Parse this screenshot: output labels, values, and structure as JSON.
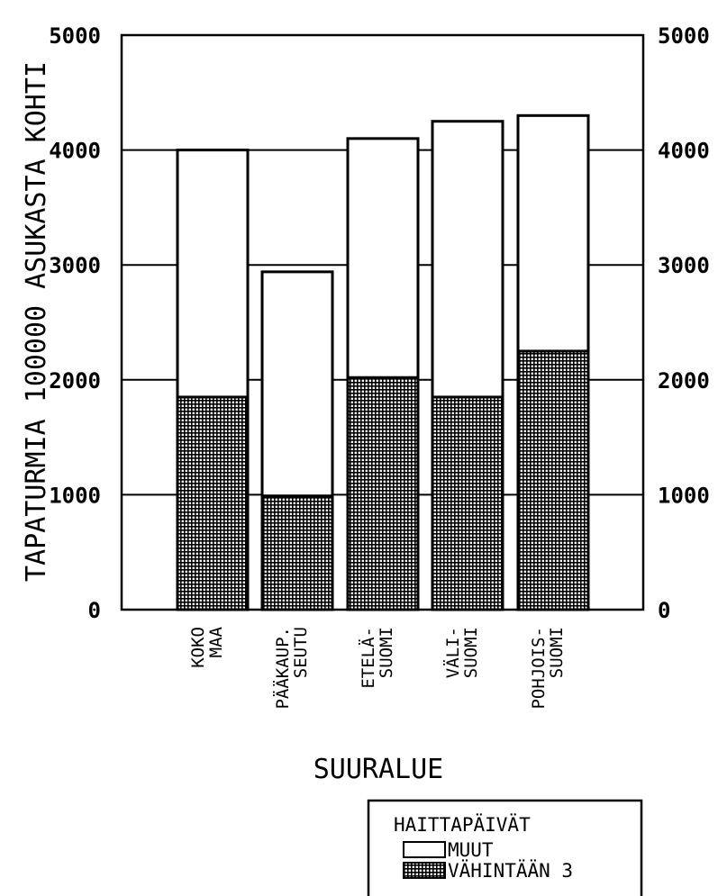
{
  "chart_data": {
    "type": "bar",
    "stacked": true,
    "ylabel": "TAPATURMIA 100000 ASUKASTA KOHTI",
    "xlabel": "SUURALUE",
    "ylim": [
      0,
      5000
    ],
    "yticks": [
      "0",
      "1000",
      "2000",
      "3000",
      "4000",
      "5000"
    ],
    "grid": true,
    "categories": [
      [
        "KOKO",
        "MAA"
      ],
      [
        "PÄÄKAUP.",
        "SEUTU"
      ],
      [
        "ETELÄ-",
        "SUOMI"
      ],
      [
        "VÄLI-",
        "SUOMI"
      ],
      [
        "POHJOIS-",
        "SUOMI"
      ]
    ],
    "series": [
      {
        "name": "VÄHINTÄÄN 3",
        "values": [
          1850,
          990,
          2020,
          1850,
          2250
        ],
        "fill": "hatched"
      },
      {
        "name": "MUUT",
        "values": [
          2150,
          1950,
          2080,
          2400,
          2050
        ],
        "fill": "white"
      }
    ],
    "legend": {
      "title": "HAITTAPÄIVÄT",
      "position": "bottom-right"
    },
    "colors": {
      "ink": "#000000",
      "paper": "#ffffff"
    }
  }
}
